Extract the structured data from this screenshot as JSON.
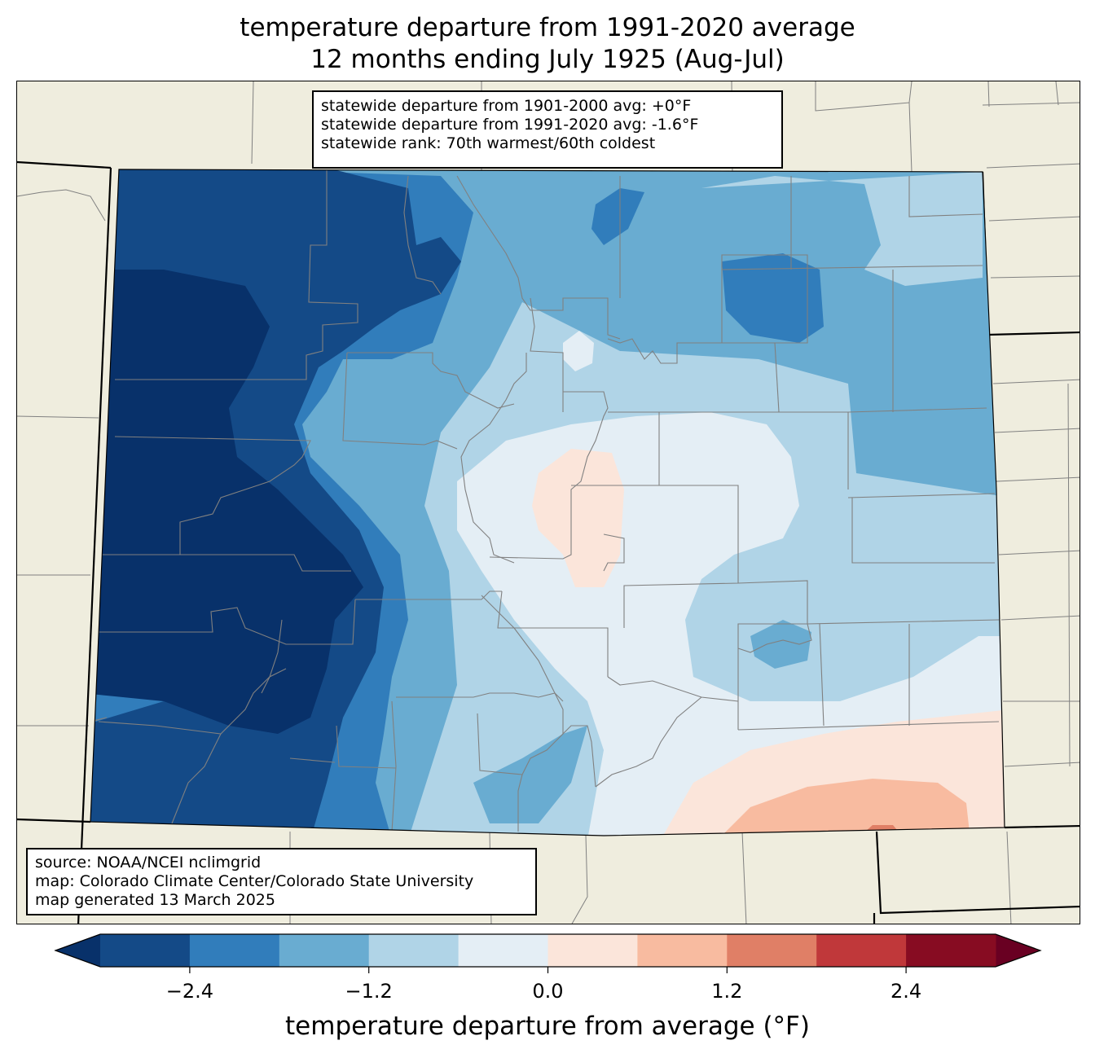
{
  "title": {
    "line1": "temperature departure from 1991-2020 average",
    "line2": "12 months ending July 1925 (Aug-Jul)"
  },
  "stats_box": {
    "line1": "statewide departure from 1901-2000 avg: +0°F",
    "line2": "statewide departure from 1991-2020 avg: -1.6°F",
    "line3": "statewide rank: 70th warmest/60th coldest"
  },
  "source_box": {
    "line1": "source: NOAA/NCEI nclimgrid",
    "line2": "map: Colorado Climate Center/Colorado State University",
    "line3": "map generated 13 March 2025"
  },
  "colorbar": {
    "label": "temperature departure from average (°F)",
    "bins": [
      -3.0,
      -2.4,
      -1.8,
      -1.2,
      -0.6,
      0.0,
      0.6,
      1.2,
      1.8,
      2.4,
      3.0
    ],
    "colors": [
      "#144a87",
      "#317dbb",
      "#69acd1",
      "#b0d4e7",
      "#e4eef5",
      "#fbe5da",
      "#f8bba0",
      "#e07f66",
      "#c0383a",
      "#870c22"
    ],
    "under_color": "#08316a",
    "over_color": "#690022",
    "ticks": [
      -2.4,
      -1.2,
      0.0,
      1.2,
      2.4
    ],
    "tick_labels": [
      "−2.4",
      "−1.2",
      "0.0",
      "1.2",
      "2.4"
    ]
  },
  "colors": {
    "land": "#efedde",
    "county_line": "#808080",
    "state_line": "#000000"
  }
}
